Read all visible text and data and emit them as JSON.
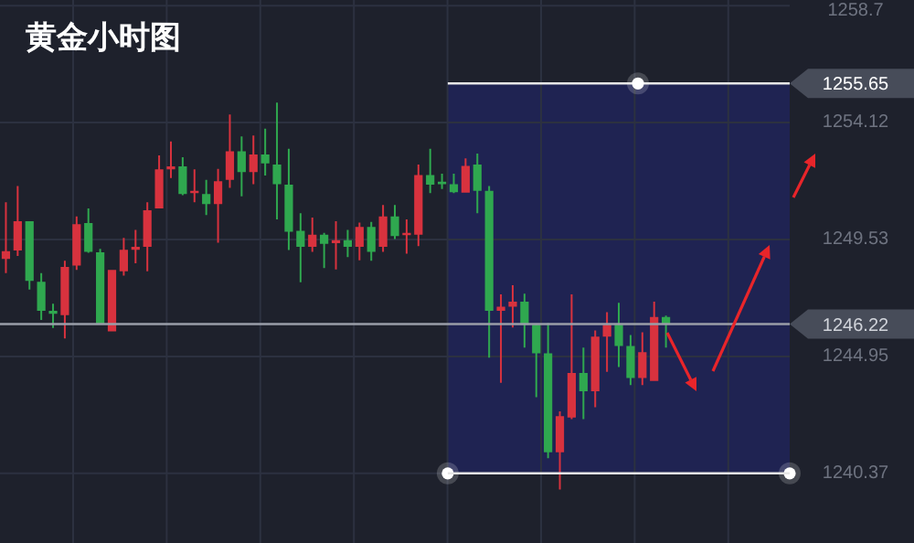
{
  "chart_data": {
    "type": "candlestick",
    "title": "黄金小时图",
    "categories": [
      null,
      null,
      null,
      null,
      null,
      null,
      null,
      null,
      null,
      null,
      null,
      null,
      null,
      null,
      null,
      null,
      null,
      null,
      null,
      null,
      null,
      null,
      null,
      null,
      null,
      null,
      null,
      null,
      null,
      null,
      null,
      null,
      null,
      null,
      null,
      null,
      null,
      null,
      null,
      null,
      null,
      null,
      null,
      null,
      null,
      null,
      null,
      null,
      null,
      null,
      null,
      null,
      null,
      null,
      null,
      null,
      null,
      null,
      null,
      null,
      null,
      null,
      null,
      null,
      null,
      null,
      null
    ],
    "ohlc": [
      [
        1248.77,
        1250.99,
        1248.22,
        1249.08
      ],
      [
        1249.1,
        1251.63,
        1248.89,
        1250.25
      ],
      [
        1250.25,
        1250.25,
        1247.57,
        1247.91
      ],
      [
        1247.88,
        1248.22,
        1246.38,
        1246.74
      ],
      [
        1246.74,
        1247.02,
        1246.07,
        1246.62
      ],
      [
        1246.57,
        1248.7,
        1245.66,
        1248.46
      ],
      [
        1248.51,
        1250.44,
        1248.34,
        1250.13
      ],
      [
        1250.18,
        1250.75,
        1249.01,
        1249.05
      ],
      [
        1249.03,
        1249.17,
        1246.21,
        1246.21
      ],
      [
        1245.93,
        1248.34,
        1245.93,
        1248.34
      ],
      [
        1248.29,
        1249.6,
        1248.12,
        1249.13
      ],
      [
        1249.13,
        1249.91,
        1248.6,
        1249.25
      ],
      [
        1249.25,
        1250.99,
        1248.29,
        1250.68
      ],
      [
        1250.75,
        1252.83,
        1250.75,
        1252.28
      ],
      [
        1252.28,
        1253.38,
        1251.94,
        1252.4
      ],
      [
        1252.4,
        1252.76,
        1251.27,
        1251.32
      ],
      [
        1251.35,
        1252.28,
        1250.99,
        1251.44
      ],
      [
        1251.32,
        1251.87,
        1250.49,
        1250.92
      ],
      [
        1250.92,
        1252.3,
        1249.41,
        1251.82
      ],
      [
        1251.87,
        1254.43,
        1251.56,
        1252.99
      ],
      [
        1252.99,
        1253.57,
        1251.23,
        1252.18
      ],
      [
        1252.18,
        1253.61,
        1251.7,
        1252.87
      ],
      [
        1252.87,
        1253.88,
        1252.04,
        1252.52
      ],
      [
        1252.47,
        1254.9,
        1250.32,
        1251.7
      ],
      [
        1251.68,
        1253.09,
        1249.12,
        1249.84
      ],
      [
        1249.87,
        1250.56,
        1247.86,
        1249.25
      ],
      [
        1249.25,
        1250.39,
        1249.05,
        1249.72
      ],
      [
        1249.72,
        1249.79,
        1248.41,
        1249.36
      ],
      [
        1249.39,
        1250.25,
        1248.36,
        1249.51
      ],
      [
        1249.51,
        1249.91,
        1248.84,
        1249.25
      ],
      [
        1249.25,
        1250.2,
        1248.72,
        1250.03
      ],
      [
        1250.03,
        1250.22,
        1248.7,
        1249.05
      ],
      [
        1249.25,
        1250.89,
        1249.05,
        1250.44
      ],
      [
        1250.44,
        1250.89,
        1249.55,
        1249.67
      ],
      [
        1249.7,
        1250.32,
        1248.98,
        1249.79
      ],
      [
        1249.72,
        1252.47,
        1249.27,
        1252.06
      ],
      [
        1252.06,
        1253.09,
        1251.35,
        1251.68
      ],
      [
        1251.8,
        1252.11,
        1251.51,
        1251.7
      ],
      [
        1251.7,
        1252.11,
        1251.35,
        1251.39
      ],
      [
        1251.37,
        1252.71,
        1251.37,
        1252.42
      ],
      [
        1252.47,
        1252.9,
        1250.56,
        1251.44
      ],
      [
        1251.44,
        1251.63,
        1244.9,
        1246.74
      ],
      [
        1246.74,
        1247.38,
        1243.92,
        1246.9
      ],
      [
        1246.9,
        1247.74,
        1246.09,
        1247.1
      ],
      [
        1247.1,
        1247.41,
        1245.3,
        1246.19
      ],
      [
        1246.19,
        1246.24,
        1243.35,
        1245.07
      ],
      [
        1245.07,
        1246.26,
        1240.96,
        1241.2
      ],
      [
        1241.2,
        1242.8,
        1239.74,
        1242.61
      ],
      [
        1242.56,
        1247.38,
        1242.49,
        1244.3
      ],
      [
        1244.3,
        1245.3,
        1242.49,
        1243.59
      ],
      [
        1243.59,
        1245.97,
        1242.96,
        1245.73
      ],
      [
        1245.73,
        1246.69,
        1244.35,
        1246.19
      ],
      [
        1246.19,
        1247.05,
        1244.54,
        1245.36
      ],
      [
        1245.36,
        1245.79,
        1243.83,
        1244.11
      ],
      [
        1244.11,
        1245.9,
        1243.83,
        1245.12
      ],
      [
        1243.99,
        1247.1,
        1243.99,
        1246.5
      ],
      [
        1246.5,
        1246.55,
        1245.3,
        1246.22
      ],
      null,
      null,
      null,
      null,
      null,
      null,
      null,
      null,
      null,
      null
    ],
    "colors": [
      "#d8323e",
      "#d8323e",
      "#2fa84f",
      "#2fa84f",
      "#2fa84f",
      "#d8323e",
      "#d8323e",
      "#2fa84f",
      "#2fa84f",
      "#d8323e",
      "#d8323e",
      "#d8323e",
      "#d8323e",
      "#d8323e",
      "#d8323e",
      "#2fa84f",
      "#d8323e",
      "#2fa84f",
      "#d8323e",
      "#d8323e",
      "#2fa84f",
      "#d8323e",
      "#2fa84f",
      "#2fa84f",
      "#2fa84f",
      "#2fa84f",
      "#d8323e",
      "#2fa84f",
      "#d8323e",
      "#2fa84f",
      "#d8323e",
      "#2fa84f",
      "#d8323e",
      "#2fa84f",
      "#d8323e",
      "#d8323e",
      "#2fa84f",
      "#2fa84f",
      "#2fa84f",
      "#d8323e",
      "#2fa84f",
      "#2fa84f",
      "#d8323e",
      "#d8323e",
      "#2fa84f",
      "#2fa84f",
      "#2fa84f",
      "#d8323e",
      "#d8323e",
      "#2fa84f",
      "#d8323e",
      "#d8323e",
      "#2fa84f",
      "#2fa84f",
      "#d8323e",
      "#d8323e",
      "#2fa84f",
      null,
      null,
      null,
      null,
      null,
      null,
      null,
      null,
      null,
      null
    ],
    "ylim": [
      1237.64,
      1258.92
    ],
    "yticks": [
      1240.37,
      1244.95,
      1249.53,
      1254.12,
      1258.7
    ],
    "tick_labels": "y",
    "grid": true,
    "ref_lines": [
      {
        "axis": "y",
        "value": 1255.65,
        "label": "1255.65",
        "color": "#e6e6e6"
      },
      {
        "axis": "y",
        "value": 1246.22,
        "label": "1246.22",
        "color": "#9a9ea8"
      },
      {
        "axis": "y",
        "value": 1240.37,
        "color": "#e6e6e6"
      }
    ],
    "bands": [
      {
        "axis": "y",
        "from": 1240.37,
        "to": 1255.65,
        "color": "#1f2352"
      }
    ]
  }
}
